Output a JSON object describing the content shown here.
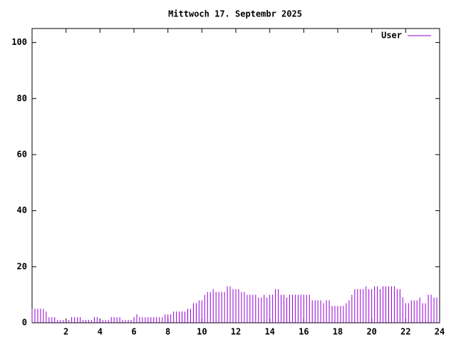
{
  "chart_data": {
    "type": "impulse",
    "title": "Mittwoch 17. Septembr 2025",
    "series": [
      {
        "name": "User",
        "color": "#9400d3",
        "x": [
          0,
          0.167,
          0.333,
          0.5,
          0.667,
          0.833,
          1,
          1.167,
          1.333,
          1.5,
          1.667,
          1.833,
          2,
          2.167,
          2.333,
          2.5,
          2.667,
          2.833,
          3,
          3.167,
          3.333,
          3.5,
          3.667,
          3.833,
          4,
          4.167,
          4.333,
          4.5,
          4.667,
          4.833,
          5,
          5.167,
          5.333,
          5.5,
          5.667,
          5.833,
          6,
          6.167,
          6.333,
          6.5,
          6.667,
          6.833,
          7,
          7.167,
          7.333,
          7.5,
          7.667,
          7.833,
          8,
          8.167,
          8.333,
          8.5,
          8.667,
          8.833,
          9,
          9.167,
          9.333,
          9.5,
          9.667,
          9.833,
          10,
          10.167,
          10.333,
          10.5,
          10.667,
          10.833,
          11,
          11.167,
          11.333,
          11.5,
          11.667,
          11.833,
          12,
          12.167,
          12.333,
          12.5,
          12.667,
          12.833,
          13,
          13.167,
          13.333,
          13.5,
          13.667,
          13.833,
          14,
          14.167,
          14.333,
          14.5,
          14.667,
          14.833,
          15,
          15.167,
          15.333,
          15.5,
          15.667,
          15.833,
          16,
          16.167,
          16.333,
          16.5,
          16.667,
          16.833,
          17,
          17.167,
          17.333,
          17.5,
          17.667,
          17.833,
          18,
          18.167,
          18.333,
          18.5,
          18.667,
          18.833,
          19,
          19.167,
          19.333,
          19.5,
          19.667,
          19.833,
          20,
          20.167,
          20.333,
          20.5,
          20.667,
          20.833,
          21,
          21.167,
          21.333,
          21.5,
          21.667,
          21.833,
          22,
          22.167,
          22.333,
          22.5,
          22.667,
          22.833,
          23,
          23.167,
          23.333,
          23.5,
          23.667,
          23.833
        ],
        "values": [
          5,
          5,
          5,
          5,
          5,
          4,
          2,
          2,
          2,
          1,
          1,
          1,
          1,
          1,
          2,
          2,
          2,
          2,
          1,
          1,
          1,
          1,
          2,
          2,
          1,
          1,
          1,
          1,
          2,
          2,
          2,
          2,
          1,
          1,
          1,
          1,
          2,
          3,
          2,
          2,
          2,
          2,
          2,
          2,
          2,
          2,
          2,
          3,
          3,
          3,
          4,
          4,
          4,
          4,
          4,
          5,
          5,
          7,
          7,
          8,
          8,
          10,
          11,
          11,
          12,
          11,
          11,
          11,
          11,
          13,
          13,
          12,
          12,
          12,
          11,
          11,
          10,
          10,
          10,
          10,
          9,
          9,
          10,
          9,
          10,
          10,
          12,
          12,
          10,
          10,
          9,
          10,
          10,
          10,
          10,
          10,
          10,
          10,
          10,
          8,
          8,
          8,
          8,
          7,
          8,
          8,
          6,
          6,
          6,
          6,
          6,
          7,
          8,
          10,
          12,
          12,
          12,
          12,
          13,
          12,
          12,
          13,
          13,
          12,
          13,
          13,
          13,
          13,
          13,
          12,
          12,
          9,
          7,
          7,
          8,
          8,
          8,
          9,
          7,
          7,
          10,
          10,
          9,
          9
        ]
      }
    ],
    "xlim": [
      0,
      24
    ],
    "xticks": [
      2,
      4,
      6,
      8,
      10,
      12,
      14,
      16,
      18,
      20,
      22,
      24
    ],
    "ylim": [
      0,
      105
    ],
    "yticks": [
      0,
      20,
      40,
      60,
      80,
      100
    ],
    "legend": "upper right"
  }
}
